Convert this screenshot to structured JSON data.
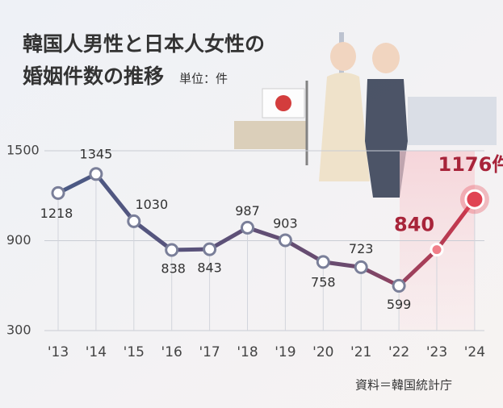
{
  "chart_data": {
    "type": "line",
    "title": "韓国人男性と日本人女性の",
    "subtitle": "婚姻件数の推移",
    "unit_note": "単位：件",
    "source": "資料＝韓国統計庁",
    "categories": [
      "'13",
      "'14",
      "'15",
      "'16",
      "'17",
      "'18",
      "'19",
      "'20",
      "'21",
      "'22",
      "'23",
      "'24"
    ],
    "series": [
      {
        "name": "婚姻件数",
        "color": "#4a5a85",
        "values": [
          1218,
          1345,
          1030,
          838,
          843,
          987,
          903,
          758,
          723,
          599,
          840,
          1176
        ],
        "value_labels": [
          "1218",
          "1345",
          "1030",
          "838",
          "843",
          "987",
          "903",
          "758",
          "723",
          "599",
          "840",
          "1176件"
        ]
      }
    ],
    "ylim": [
      300,
      1500
    ],
    "yticks": [
      300,
      900,
      1500
    ],
    "grid": true
  }
}
